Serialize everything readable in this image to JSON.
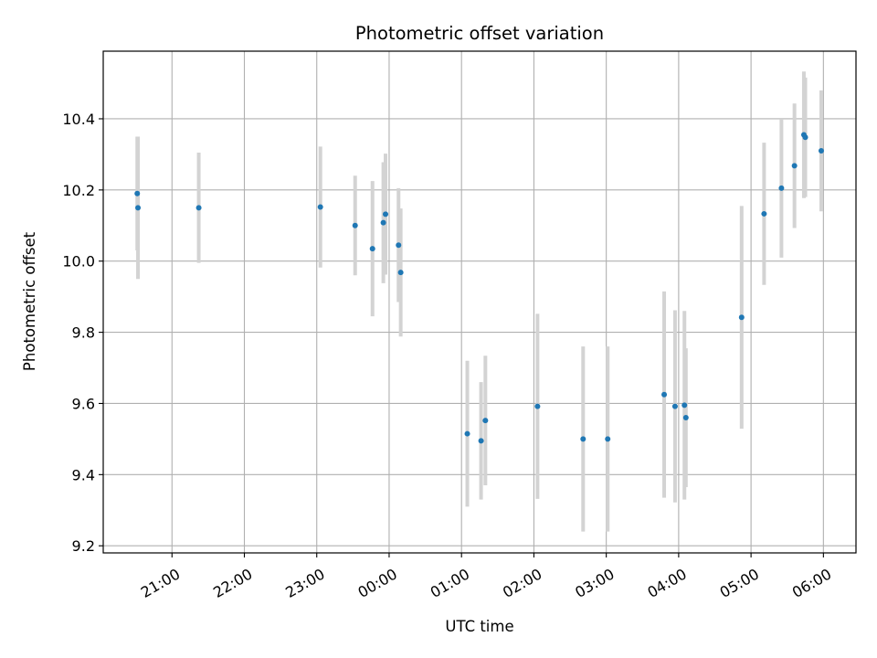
{
  "chart_data": {
    "type": "scatter",
    "title": "Photometric offset variation",
    "xlabel": "UTC time",
    "ylabel": "Photometric offset",
    "x_tick_labels": [
      "21:00",
      "22:00",
      "23:00",
      "00:00",
      "01:00",
      "02:00",
      "03:00",
      "04:00",
      "05:00",
      "06:00"
    ],
    "x_ticks_hours": [
      21,
      22,
      23,
      24,
      25,
      26,
      27,
      28,
      29,
      30
    ],
    "xlim_hours": [
      20.05,
      30.45
    ],
    "y_tick_labels": [
      "9.2",
      "9.4",
      "9.6",
      "9.8",
      "10.0",
      "10.2",
      "10.4"
    ],
    "y_ticks": [
      9.2,
      9.4,
      9.6,
      9.8,
      10.0,
      10.2,
      10.4
    ],
    "ylim": [
      9.18,
      10.59
    ],
    "grid": true,
    "marker_color": "#1f77b4",
    "errorbar_color": "#d3d3d3",
    "points": [
      {
        "t": 20.52,
        "y": 10.19,
        "err": 0.16
      },
      {
        "t": 20.53,
        "y": 10.15,
        "err": 0.2
      },
      {
        "t": 21.37,
        "y": 10.15,
        "err": 0.155
      },
      {
        "t": 23.05,
        "y": 10.152,
        "err": 0.17
      },
      {
        "t": 23.53,
        "y": 10.1,
        "err": 0.14
      },
      {
        "t": 23.77,
        "y": 10.035,
        "err": 0.19
      },
      {
        "t": 23.92,
        "y": 10.108,
        "err": 0.17
      },
      {
        "t": 23.95,
        "y": 10.132,
        "err": 0.17
      },
      {
        "t": 24.13,
        "y": 10.045,
        "err": 0.16
      },
      {
        "t": 24.16,
        "y": 9.968,
        "err": 0.18
      },
      {
        "t": 25.08,
        "y": 9.515,
        "err": 0.205
      },
      {
        "t": 25.27,
        "y": 9.495,
        "err": 0.165
      },
      {
        "t": 25.33,
        "y": 9.552,
        "err": 0.182
      },
      {
        "t": 26.05,
        "y": 9.592,
        "err": 0.26
      },
      {
        "t": 26.68,
        "y": 9.5,
        "err": 0.26
      },
      {
        "t": 27.02,
        "y": 9.5,
        "err": 0.26
      },
      {
        "t": 27.8,
        "y": 9.625,
        "err": 0.29
      },
      {
        "t": 27.95,
        "y": 9.592,
        "err": 0.27
      },
      {
        "t": 28.08,
        "y": 9.595,
        "err": 0.265
      },
      {
        "t": 28.1,
        "y": 9.56,
        "err": 0.195
      },
      {
        "t": 28.87,
        "y": 9.842,
        "err": 0.313
      },
      {
        "t": 29.18,
        "y": 10.133,
        "err": 0.2
      },
      {
        "t": 29.42,
        "y": 10.205,
        "err": 0.195
      },
      {
        "t": 29.6,
        "y": 10.268,
        "err": 0.175
      },
      {
        "t": 29.73,
        "y": 10.355,
        "err": 0.178
      },
      {
        "t": 29.75,
        "y": 10.348,
        "err": 0.168
      },
      {
        "t": 29.97,
        "y": 10.31,
        "err": 0.17
      }
    ]
  }
}
